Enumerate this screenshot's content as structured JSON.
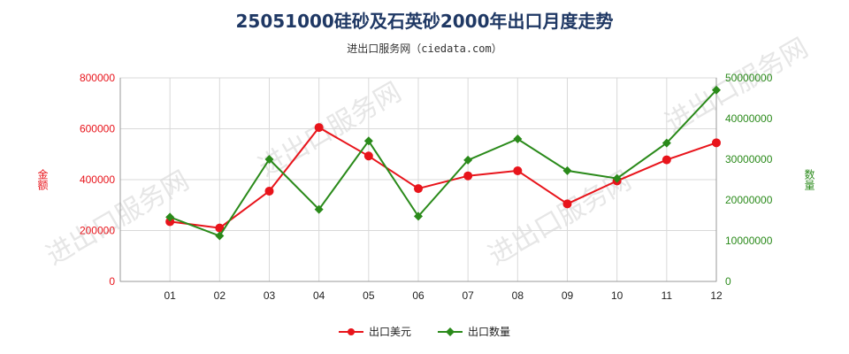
{
  "chart_data": {
    "type": "line",
    "title": "25051000硅砂及石英砂2000年出口月度走势",
    "subtitle": "进出口服务网（ciedata.com）",
    "watermark": "进出口服务网",
    "categories": [
      "01",
      "02",
      "03",
      "04",
      "05",
      "06",
      "07",
      "08",
      "09",
      "10",
      "11",
      "12"
    ],
    "y_left": {
      "label": "金额",
      "ylim": [
        0,
        800000
      ],
      "ticks": [
        "0",
        "200000",
        "400000",
        "600000",
        "800000"
      ],
      "color": "#e8141b"
    },
    "y_right": {
      "label": "数量",
      "ylim": [
        0,
        50000000
      ],
      "ticks": [
        "0",
        "10000000",
        "20000000",
        "30000000",
        "40000000",
        "50000000"
      ],
      "color": "#2a8a1a"
    },
    "series": [
      {
        "name": "出口美元",
        "axis": "left",
        "color": "#e8141b",
        "marker": "circle",
        "values": [
          235000,
          210000,
          355000,
          605000,
          493000,
          365000,
          415000,
          435000,
          305000,
          395000,
          478000,
          545000
        ]
      },
      {
        "name": "出口数量",
        "axis": "right",
        "color": "#2a8a1a",
        "marker": "diamond",
        "values": [
          15800000,
          11200000,
          30000000,
          17700000,
          34500000,
          16000000,
          29800000,
          35000000,
          27200000,
          25300000,
          34000000,
          47000000
        ]
      }
    ],
    "grid": true,
    "legend_position": "bottom"
  }
}
